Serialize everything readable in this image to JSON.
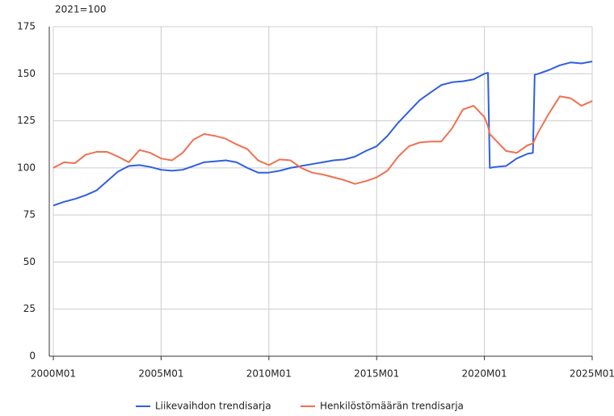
{
  "chart_data": {
    "type": "line",
    "y_unit_label": "2021=100",
    "x": [
      "2000M01",
      "2000M07",
      "2001M01",
      "2001M07",
      "2002M01",
      "2002M07",
      "2003M01",
      "2003M07",
      "2004M01",
      "2004M07",
      "2005M01",
      "2005M07",
      "2006M01",
      "2006M07",
      "2007M01",
      "2007M07",
      "2008M01",
      "2008M07",
      "2009M01",
      "2009M07",
      "2010M01",
      "2010M07",
      "2011M01",
      "2011M07",
      "2012M01",
      "2012M07",
      "2013M01",
      "2013M07",
      "2014M01",
      "2014M07",
      "2015M01",
      "2015M07",
      "2016M01",
      "2016M07",
      "2017M01",
      "2017M07",
      "2018M01",
      "2018M07",
      "2019M01",
      "2019M07",
      "2020M01",
      "2020M03",
      "2020M04",
      "2020M07",
      "2021M01",
      "2021M07",
      "2022M01",
      "2022M04",
      "2022M05",
      "2022M07",
      "2023M01",
      "2023M07",
      "2024M01",
      "2024M07",
      "2025M01"
    ],
    "series": [
      {
        "name": "Liikevaihdon trendisarja",
        "color": "#2f5fe0",
        "values": [
          80,
          82,
          83.5,
          85.5,
          88,
          93,
          98,
          101,
          101.5,
          100.5,
          99,
          98.5,
          99,
          101,
          103,
          103.5,
          104,
          103,
          100,
          97.5,
          97.5,
          98.5,
          100,
          101,
          102,
          103,
          104,
          104.5,
          106,
          109,
          111.5,
          117,
          124,
          130,
          136,
          140,
          144,
          145.5,
          146,
          147,
          150,
          150.5,
          100,
          100.5,
          101,
          105,
          107.5,
          108,
          149.5,
          150,
          152,
          154.5,
          156,
          155.5,
          156.5
        ]
      },
      {
        "name": "Henkilöstömäärän trendisarja",
        "color": "#f07050",
        "values": [
          100,
          103,
          102.5,
          107,
          108.5,
          108.5,
          106,
          103,
          109.5,
          108,
          105,
          104,
          108,
          115,
          118,
          117,
          115.5,
          112.5,
          110,
          104,
          101.5,
          104.5,
          104,
          100,
          97.5,
          96.5,
          95,
          93.5,
          91.5,
          93,
          95,
          98.5,
          106,
          111.5,
          113.5,
          114,
          114,
          121,
          131,
          133,
          127,
          122,
          118,
          115,
          109,
          108,
          112,
          113,
          115,
          119,
          129,
          138,
          137,
          133,
          135.5
        ]
      }
    ],
    "xlim": [
      "2000M01",
      "2025M01"
    ],
    "xticks": [
      "2000M01",
      "2005M01",
      "2010M01",
      "2015M01",
      "2020M01",
      "2025M01"
    ],
    "ylim": [
      0,
      175
    ],
    "yticks": [
      0,
      25,
      50,
      75,
      100,
      125,
      150,
      175
    ],
    "grid": true
  }
}
